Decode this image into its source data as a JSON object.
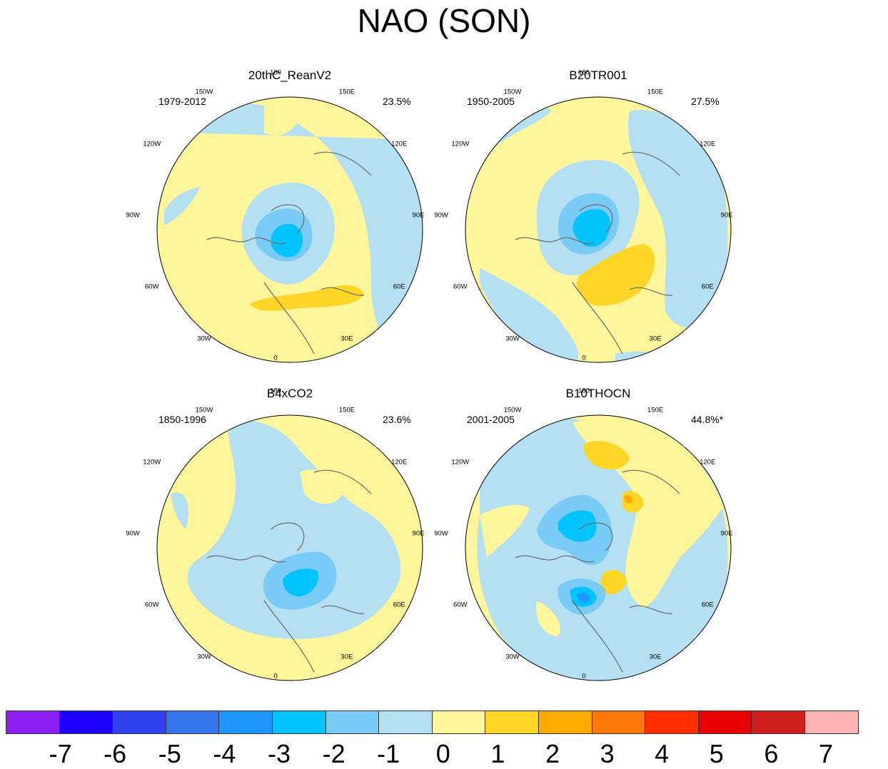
{
  "figure": {
    "title": "NAO (SON)"
  },
  "panels": [
    {
      "title": "20thC_ReanV2",
      "years": "1979-2012",
      "variance": "23.5%"
    },
    {
      "title": "B20TR001",
      "years": "1950-2005",
      "variance": "27.5%"
    },
    {
      "title": "B4xCO2",
      "years": "1850-1996",
      "variance": "23.6%"
    },
    {
      "title": "B10THOCN",
      "years": "2001-2005",
      "variance": "44.8%*"
    }
  ],
  "longitudes": {
    "l180": "180",
    "l150e": "150E",
    "l120e": "120E",
    "l90e": "90E",
    "l60e": "60E",
    "l30e": "30E",
    "l0": "0",
    "l30w": "30W",
    "l60w": "60W",
    "l90w": "90W",
    "l120w": "120W",
    "l150w": "150W"
  },
  "colorbar": {
    "colors": [
      "#8B1EF0",
      "#1E00FF",
      "#3040EE",
      "#3575EC",
      "#1E96FF",
      "#00C3FF",
      "#7ACBF5",
      "#B5DFF3",
      "#FFF59A",
      "#FFD527",
      "#FFAA00",
      "#FF780A",
      "#FF2D00",
      "#E60000",
      "#CC1E1E",
      "#FFB3B3"
    ],
    "labels": [
      "-7",
      "-6",
      "-5",
      "-4",
      "-3",
      "-2",
      "-1",
      "0",
      "1",
      "2",
      "3",
      "4",
      "5",
      "6",
      "7"
    ]
  },
  "chart_data": {
    "type": "contour-map",
    "title": "NAO (SON)",
    "projection": "north polar stereographic",
    "levels": [
      -7,
      -6,
      -5,
      -4,
      -3,
      -2,
      -1,
      0,
      1,
      2,
      3,
      4,
      5,
      6,
      7
    ],
    "panels": [
      {
        "name": "20thC_ReanV2",
        "period": "1979-2012",
        "explained_variance": "23.5%"
      },
      {
        "name": "B20TR001",
        "period": "1950-2005",
        "explained_variance": "27.5%"
      },
      {
        "name": "B4xCO2",
        "period": "1850-1996",
        "explained_variance": "23.6%"
      },
      {
        "name": "B10THOCN",
        "period": "2001-2005",
        "explained_variance": "44.8%*"
      }
    ]
  }
}
